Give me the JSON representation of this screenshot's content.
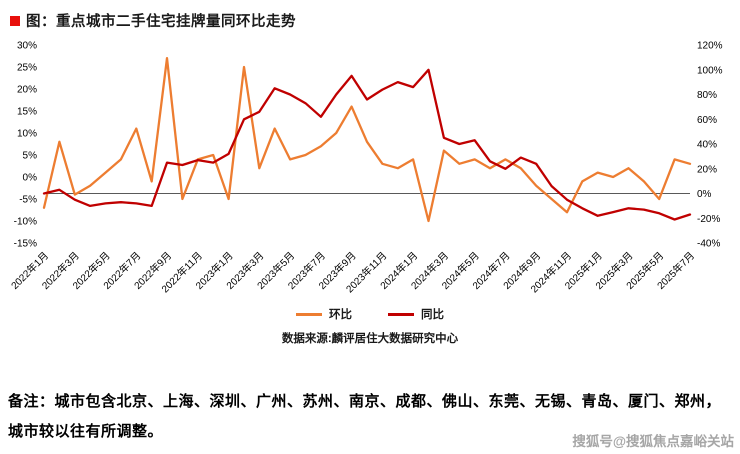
{
  "page": {
    "title": "图：重点城市二手住宅挂牌量同环比走势",
    "source": "数据来源:麟评居住大数据研究中心",
    "note_line1": "备注：城市包含北京、上海、深圳、广州、苏州、南京、成都、佛山、东莞、无锡、青岛、厦门、郑州，",
    "note_line2": "城市较以往有所调整。",
    "watermark": "搜狐号@搜狐焦点嘉峪关站"
  },
  "chart_data": {
    "type": "line",
    "title": "重点城市二手住宅挂牌量同环比走势",
    "grid": false,
    "legend_position": "bottom",
    "x": [
      "2022年1月",
      "2022年2月",
      "2022年3月",
      "2022年4月",
      "2022年5月",
      "2022年6月",
      "2022年7月",
      "2022年8月",
      "2022年9月",
      "2022年10月",
      "2022年11月",
      "2022年12月",
      "2023年1月",
      "2023年2月",
      "2023年3月",
      "2023年4月",
      "2023年5月",
      "2023年6月",
      "2023年7月",
      "2023年8月",
      "2023年9月",
      "2023年10月",
      "2023年11月",
      "2023年12月",
      "2024年1月",
      "2024年2月",
      "2024年3月",
      "2024年4月",
      "2024年5月",
      "2024年6月",
      "2024年7月",
      "2024年8月",
      "2024年9月",
      "2024年10月",
      "2024年11月",
      "2024年12月",
      "2025年1月",
      "2025年2月",
      "2025年3月",
      "2025年4月",
      "2025年5月",
      "2025年6月",
      "2025年7月"
    ],
    "x_tick_every": 2,
    "left_axis": {
      "min": -15,
      "max": 30,
      "unit": "%",
      "ticks": [
        30,
        25,
        20,
        15,
        10,
        5,
        0,
        -5,
        -10,
        -15
      ]
    },
    "right_axis": {
      "min": -40,
      "max": 120,
      "unit": "%",
      "ticks": [
        120,
        100,
        80,
        60,
        40,
        20,
        0,
        -20,
        -40
      ]
    },
    "series": [
      {
        "name": "环比",
        "axis": "left",
        "color": "#ED7D31",
        "values": [
          -7,
          8,
          -4,
          -2,
          1,
          4,
          11,
          -1,
          27,
          -5,
          4,
          5,
          -5,
          25,
          2,
          11,
          4,
          5,
          7,
          10,
          16,
          8,
          3,
          2,
          4,
          -10,
          6,
          3,
          4,
          2,
          4,
          2,
          -2,
          -5,
          -8,
          -1,
          1,
          0,
          2,
          -1,
          -5,
          4,
          3
        ]
      },
      {
        "name": "同比",
        "axis": "right",
        "color": "#C00000",
        "values": [
          0,
          3,
          -5,
          -10,
          -8,
          -7,
          -8,
          -10,
          25,
          23,
          27,
          25,
          32,
          60,
          66,
          85,
          80,
          73,
          62,
          80,
          95,
          76,
          84,
          90,
          86,
          100,
          45,
          40,
          43,
          26,
          20,
          29,
          24,
          6,
          -5,
          -12,
          -18,
          -15,
          -12,
          -13,
          -16,
          -21,
          -17
        ]
      }
    ]
  }
}
